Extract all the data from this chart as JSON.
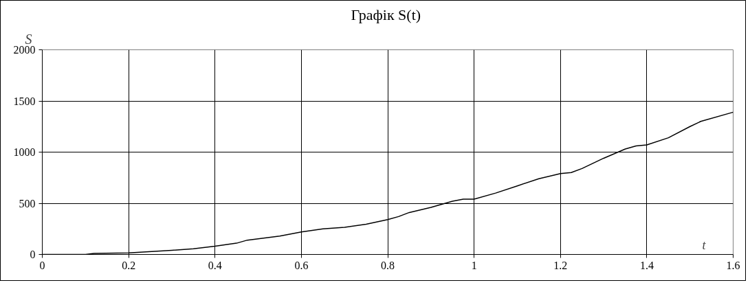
{
  "chart_data": {
    "type": "line",
    "title": "Графік  S(t)",
    "ylabel": "S",
    "xlabel": "t",
    "x": [
      0,
      0.05,
      0.1,
      0.12,
      0.2,
      0.3,
      0.35,
      0.4,
      0.45,
      0.475,
      0.55,
      0.6,
      0.65,
      0.7,
      0.75,
      0.8,
      0.825,
      0.85,
      0.9,
      0.95,
      0.975,
      1.0,
      1.05,
      1.1,
      1.15,
      1.2,
      1.225,
      1.25,
      1.3,
      1.35,
      1.375,
      1.4,
      1.45,
      1.5,
      1.525,
      1.6
    ],
    "series": [
      {
        "color": "#000000",
        "values": [
          0,
          0,
          0,
          10,
          15,
          40,
          55,
          80,
          110,
          140,
          180,
          220,
          250,
          265,
          295,
          340,
          370,
          410,
          460,
          520,
          540,
          540,
          600,
          670,
          740,
          790,
          800,
          840,
          940,
          1030,
          1060,
          1070,
          1140,
          1250,
          1300,
          1390
        ]
      }
    ],
    "xlim": [
      0,
      1.6
    ],
    "ylim": [
      0,
      2000
    ],
    "xticks": [
      0,
      0.2,
      0.4,
      0.6,
      0.8,
      1,
      1.2,
      1.4,
      1.6
    ],
    "yticks": [
      0,
      500,
      1000,
      1500,
      2000
    ],
    "grid": true,
    "marker": "none",
    "line_style": "solid"
  }
}
